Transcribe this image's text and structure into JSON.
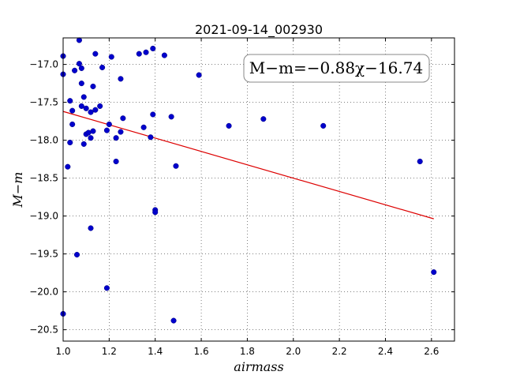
{
  "chart_data": {
    "type": "scatter",
    "title": "2021-09-14_002930",
    "xlabel": "airmass",
    "ylabel": "M−m",
    "xlim": [
      1.0,
      2.7
    ],
    "ylim": [
      -20.65,
      -16.65
    ],
    "y_inverted": true,
    "grid": true,
    "x_ticks": [
      1.0,
      1.2,
      1.4,
      1.6,
      1.8,
      2.0,
      2.2,
      2.4,
      2.6
    ],
    "x_tick_labels": [
      "1.0",
      "1.2",
      "1.4",
      "1.6",
      "1.8",
      "2.0",
      "2.2",
      "2.4",
      "2.6"
    ],
    "y_ticks": [
      -17.0,
      -17.5,
      -18.0,
      -18.5,
      -19.0,
      -19.5,
      -20.0,
      -20.5
    ],
    "y_tick_labels": [
      "−17.0",
      "−17.5",
      "−18.0",
      "−18.5",
      "−19.0",
      "−19.5",
      "−20.0",
      "−20.5"
    ],
    "annotation": "M−m=−0.88χ−16.74",
    "point_color": "#0000cc",
    "fit_color": "#dd0000",
    "fit_line": {
      "slope": -0.88,
      "intercept": -16.74,
      "x_range": [
        1.0,
        2.61
      ]
    },
    "points": [
      [
        1.0,
        -16.89
      ],
      [
        1.0,
        -17.13
      ],
      [
        1.0,
        -20.29
      ],
      [
        1.02,
        -18.35
      ],
      [
        1.03,
        -17.48
      ],
      [
        1.03,
        -18.03
      ],
      [
        1.04,
        -17.61
      ],
      [
        1.04,
        -17.79
      ],
      [
        1.05,
        -17.08
      ],
      [
        1.06,
        -19.51
      ],
      [
        1.07,
        -16.68
      ],
      [
        1.07,
        -16.99
      ],
      [
        1.08,
        -17.05
      ],
      [
        1.08,
        -17.25
      ],
      [
        1.08,
        -17.55
      ],
      [
        1.09,
        -17.43
      ],
      [
        1.09,
        -18.05
      ],
      [
        1.1,
        -17.58
      ],
      [
        1.1,
        -17.92
      ],
      [
        1.11,
        -17.9
      ],
      [
        1.12,
        -17.63
      ],
      [
        1.12,
        -17.97
      ],
      [
        1.12,
        -19.16
      ],
      [
        1.13,
        -17.29
      ],
      [
        1.13,
        -17.88
      ],
      [
        1.14,
        -16.86
      ],
      [
        1.14,
        -17.6
      ],
      [
        1.16,
        -17.55
      ],
      [
        1.17,
        -17.04
      ],
      [
        1.19,
        -17.87
      ],
      [
        1.19,
        -19.95
      ],
      [
        1.2,
        -17.79
      ],
      [
        1.21,
        -16.9
      ],
      [
        1.23,
        -17.97
      ],
      [
        1.23,
        -18.28
      ],
      [
        1.25,
        -17.19
      ],
      [
        1.25,
        -17.89
      ],
      [
        1.26,
        -17.71
      ],
      [
        1.33,
        -16.86
      ],
      [
        1.35,
        -17.83
      ],
      [
        1.36,
        -16.84
      ],
      [
        1.38,
        -17.96
      ],
      [
        1.39,
        -17.66
      ],
      [
        1.39,
        -16.79
      ],
      [
        1.4,
        -18.92
      ],
      [
        1.4,
        -18.95
      ],
      [
        1.44,
        -16.88
      ],
      [
        1.47,
        -17.69
      ],
      [
        1.48,
        -20.38
      ],
      [
        1.49,
        -18.34
      ],
      [
        1.59,
        -17.14
      ],
      [
        1.72,
        -17.81
      ],
      [
        1.87,
        -17.72
      ],
      [
        2.13,
        -17.81
      ],
      [
        2.55,
        -18.28
      ],
      [
        2.61,
        -19.74
      ]
    ]
  }
}
